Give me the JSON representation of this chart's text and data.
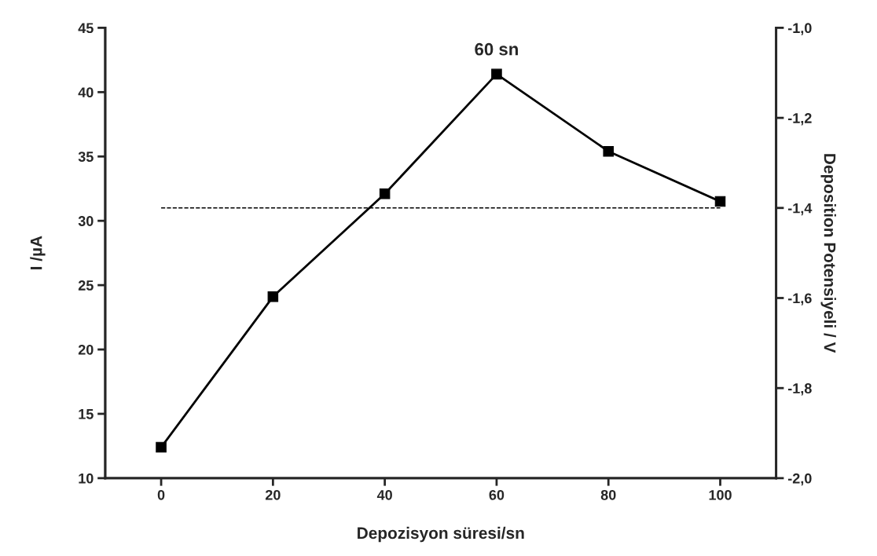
{
  "chart_data": {
    "type": "line",
    "xlabel": "Depozisyon süresi/sn",
    "ylabel": "I /µA",
    "y2label": "Deposition Potensiyeli / V",
    "x": [
      0,
      20,
      40,
      60,
      80,
      100
    ],
    "series": [
      {
        "color": "#000000",
        "values": [
          12.4,
          24.1,
          32.1,
          41.4,
          35.4,
          31.5
        ]
      }
    ],
    "marker": "square",
    "line_style": "solid",
    "xlim": [
      -10,
      110
    ],
    "xticks": [
      0,
      20,
      40,
      60,
      80,
      100
    ],
    "ylim": [
      10,
      45
    ],
    "yticks": [
      10,
      15,
      20,
      25,
      30,
      35,
      40,
      45
    ],
    "y2lim": [
      -2.0,
      -1.0
    ],
    "y2ticks": [
      {
        "value": -2.0,
        "label": "-2,0"
      },
      {
        "value": -1.8,
        "label": "-1,8"
      },
      {
        "value": -1.6,
        "label": "-1,6"
      },
      {
        "value": -1.4,
        "label": "-1,4"
      },
      {
        "value": -1.2,
        "label": "-1,2"
      },
      {
        "value": -1.0,
        "label": "-1,0"
      }
    ],
    "ref_lines": [
      {
        "axis": "y2",
        "value": -1.4,
        "color": "#000000",
        "line_style": "dashed"
      }
    ],
    "annotations": [
      {
        "text": "60 sn",
        "x": 60,
        "y": 41.4
      }
    ],
    "grid": false,
    "legend": false
  }
}
